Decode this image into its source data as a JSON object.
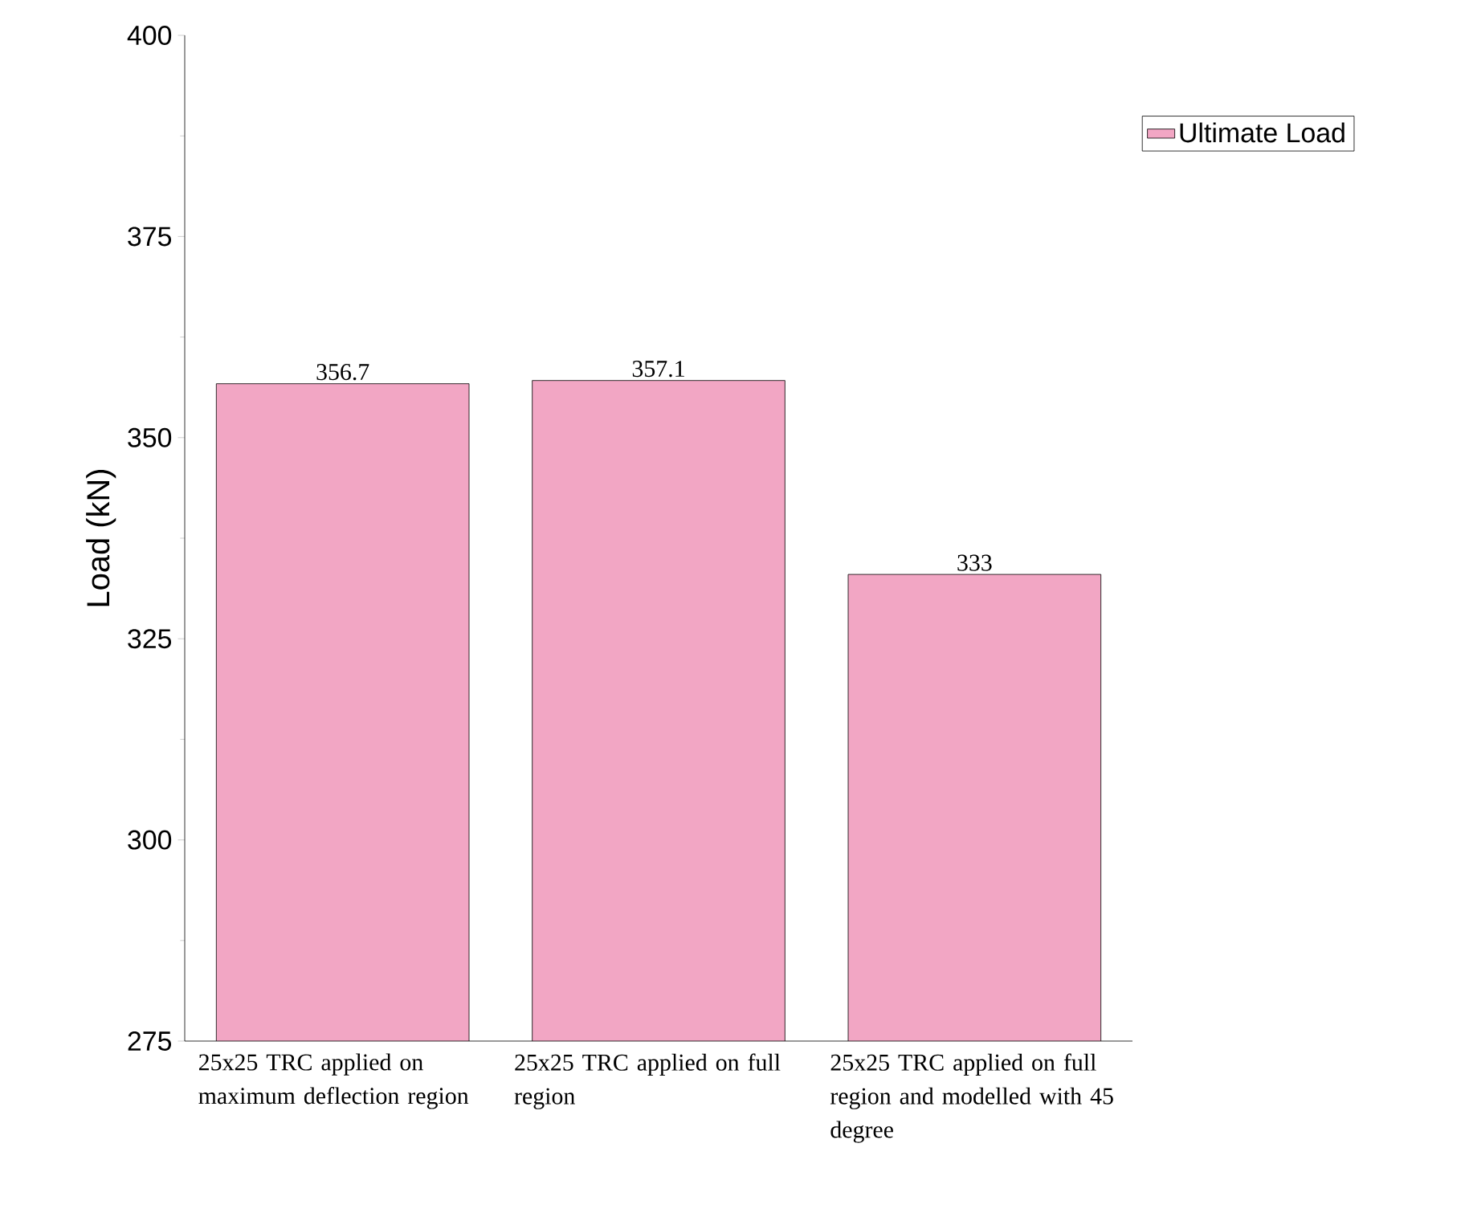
{
  "chart_data": {
    "type": "bar",
    "categories": [
      "25x25 TRC applied on maximum deflection region",
      "25x25 TRC applied on full region",
      "25x25 TRC applied on full region and modelled with 45 degree"
    ],
    "series": [
      {
        "name": "Ultimate Load",
        "color": "#f2a6c4",
        "values": [
          356.7,
          357.1,
          333
        ]
      }
    ],
    "ylabel": "Load (kN)",
    "ylim": [
      275,
      400
    ],
    "yticks": [
      275,
      300,
      325,
      350,
      375,
      400
    ],
    "data_labels": true,
    "legend": "top right",
    "grid": false
  }
}
